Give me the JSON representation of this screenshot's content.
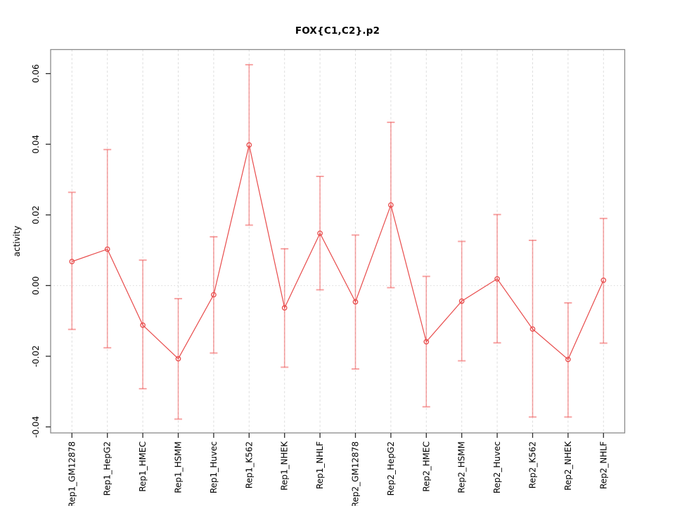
{
  "chart_data": {
    "type": "line",
    "title": "FOX{C1,C2}.p2",
    "xlabel": "",
    "ylabel": "activity",
    "categories": [
      "Rep1_GM12878",
      "Rep1_HepG2",
      "Rep1_HMEC",
      "Rep1_HSMM",
      "Rep1_Huvec",
      "Rep1_K562",
      "Rep1_NHEK",
      "Rep1_NHLF",
      "Rep2_GM12878",
      "Rep2_HepG2",
      "Rep2_HMEC",
      "Rep2_HSMM",
      "Rep2_Huvec",
      "Rep2_K562",
      "Rep2_NHEK",
      "Rep2_NHLF"
    ],
    "series": [
      {
        "name": "activity",
        "values": [
          0.0068,
          0.0103,
          -0.0112,
          -0.0207,
          -0.0026,
          0.0398,
          -0.0063,
          0.0148,
          -0.0046,
          0.0228,
          -0.0159,
          -0.0044,
          0.0019,
          -0.0123,
          -0.0209,
          0.0015
        ],
        "error_low": [
          -0.0124,
          -0.0176,
          -0.0292,
          -0.0378,
          -0.0191,
          0.0171,
          -0.0231,
          -0.0012,
          -0.0236,
          -0.0006,
          -0.0343,
          -0.0213,
          -0.0162,
          -0.0372,
          -0.0372,
          -0.0163
        ],
        "error_high": [
          0.0264,
          0.0385,
          0.0072,
          -0.0037,
          0.0138,
          0.0625,
          0.0104,
          0.0309,
          0.0143,
          0.0462,
          0.0026,
          0.0125,
          0.0201,
          0.0128,
          -0.0049,
          0.019
        ]
      }
    ],
    "ylim": [
      -0.0417,
      0.0668
    ],
    "yticks": [
      -0.04,
      -0.02,
      0.0,
      0.02,
      0.04,
      0.06
    ],
    "grid": "vertical dashed gridline per category; dotted horizontal line at y=0",
    "legend": "none",
    "colors": {
      "point_line": "#e84b4b",
      "error_bar": "rgba(240,90,90,0.55)",
      "gridline": "#dcdcdc",
      "zero_line": "#d9d9d9",
      "box": "#8a8a8a",
      "tick": "#2b2b2b",
      "text": "#000000"
    }
  }
}
